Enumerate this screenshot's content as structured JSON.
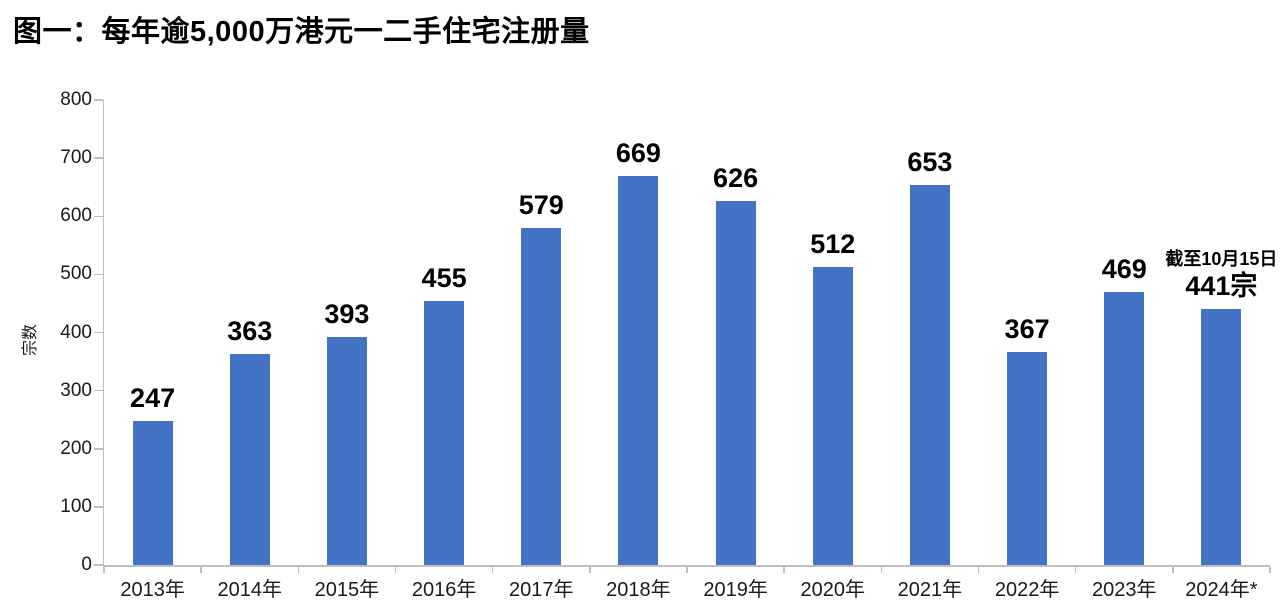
{
  "chart_data": {
    "type": "bar",
    "title": "图一：每年逾5,000万港元一二手住宅注册量",
    "ylabel": "宗数",
    "xlabel": "",
    "categories": [
      "2013年",
      "2014年",
      "2015年",
      "2016年",
      "2017年",
      "2018年",
      "2019年",
      "2020年",
      "2021年",
      "2022年",
      "2023年",
      "2024年*"
    ],
    "values": [
      247,
      363,
      393,
      455,
      579,
      669,
      626,
      512,
      653,
      367,
      469,
      441
    ],
    "value_labels": [
      "247",
      "363",
      "393",
      "455",
      "579",
      "669",
      "626",
      "512",
      "653",
      "367",
      "469",
      "441宗"
    ],
    "annotation": {
      "text": "截至10月15日",
      "category": "2024年*"
    },
    "ylim": [
      0,
      800
    ],
    "ytick_step": 100,
    "grid": false,
    "legend_position": "none",
    "bar_color": "#4472C4",
    "axis_color": "#BFBFBF",
    "text_color": "#000000"
  }
}
